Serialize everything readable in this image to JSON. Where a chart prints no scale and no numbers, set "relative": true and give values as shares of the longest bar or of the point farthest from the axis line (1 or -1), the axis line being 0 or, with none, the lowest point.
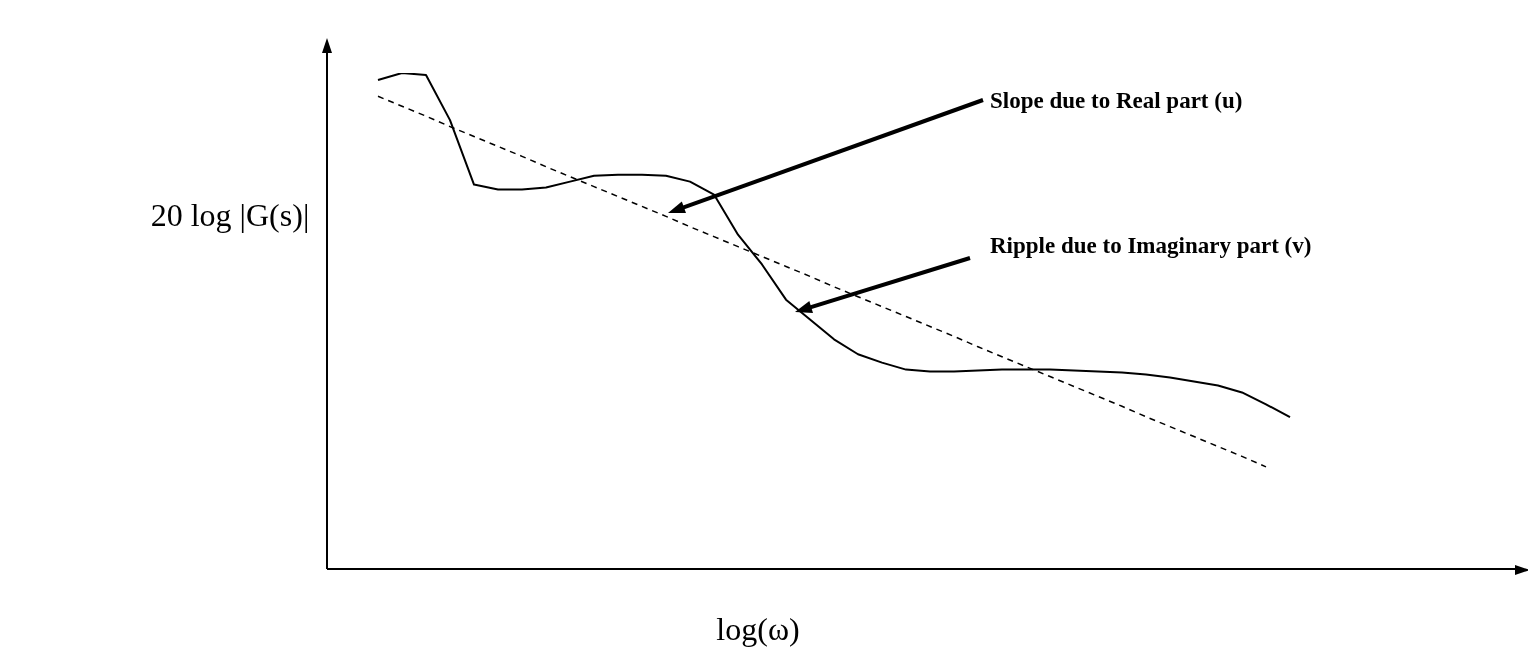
{
  "chart_data": {
    "type": "line",
    "relative": true,
    "xlabel": "log(ω)",
    "ylabel": "20 log |G(s)|",
    "categories": [
      null,
      null,
      null,
      null,
      null,
      null,
      null,
      null,
      null,
      null,
      null,
      null,
      null,
      null,
      null,
      null,
      null,
      null,
      null,
      null,
      null,
      null,
      null,
      null,
      null,
      null,
      null,
      null,
      null,
      null,
      null,
      null,
      null,
      null,
      null,
      null,
      null,
      null,
      null
    ],
    "series": [
      {
        "color": "#000000",
        "line_style": "solid",
        "values": [
          0.986,
          1,
          0.996,
          0.905,
          0.775,
          0.765,
          0.765,
          0.769,
          0.781,
          0.793,
          0.795,
          0.795,
          0.793,
          0.781,
          0.755,
          0.674,
          0.614,
          0.543,
          0.503,
          0.463,
          0.433,
          0.416,
          0.402,
          0.398,
          0.398,
          0.4,
          0.402,
          0.402,
          0.402,
          0.4,
          0.398,
          0.396,
          0.392,
          0.386,
          0.378,
          0.37,
          0.356,
          0.332,
          0.306
        ]
      },
      {
        "color": "#000000",
        "line_style": "dashed",
        "values": [
          0.953,
          0.933,
          0.913,
          0.892,
          0.872,
          0.852,
          0.832,
          0.811,
          0.791,
          0.771,
          0.751,
          0.731,
          0.711,
          0.69,
          0.67,
          0.65,
          0.63,
          0.61,
          0.59,
          0.569,
          0.549,
          0.529,
          0.509,
          0.489,
          0.469,
          0.448,
          0.428,
          0.408,
          0.388,
          0.368,
          0.348,
          0.328,
          0.307,
          0.287,
          0.267,
          0.247,
          0.227,
          0.206,
          null
        ]
      }
    ],
    "annotations": [
      "Slope due to Real part (u)",
      "Ripple due to Imaginary part (v)"
    ]
  }
}
